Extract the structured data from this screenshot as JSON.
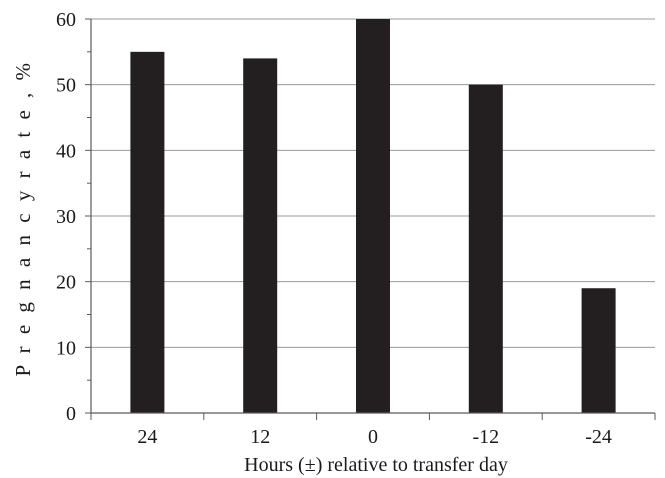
{
  "chart_data": {
    "type": "bar",
    "categories": [
      "24",
      "12",
      "0",
      "-12",
      "-24"
    ],
    "values": [
      55,
      54,
      60,
      50,
      19
    ],
    "title": "",
    "xlabel": "Hours (±) relative to transfer day",
    "ylabel": "P r e g n a n c y   r a t e ,   %",
    "ylim": [
      0,
      60
    ],
    "yticks": [
      0,
      10,
      20,
      30,
      40,
      50,
      60
    ],
    "grid": "horizontal",
    "bar_color": "#231f20",
    "grid_color": "#9a9a9a",
    "axis_color": "#5a5a5a"
  }
}
